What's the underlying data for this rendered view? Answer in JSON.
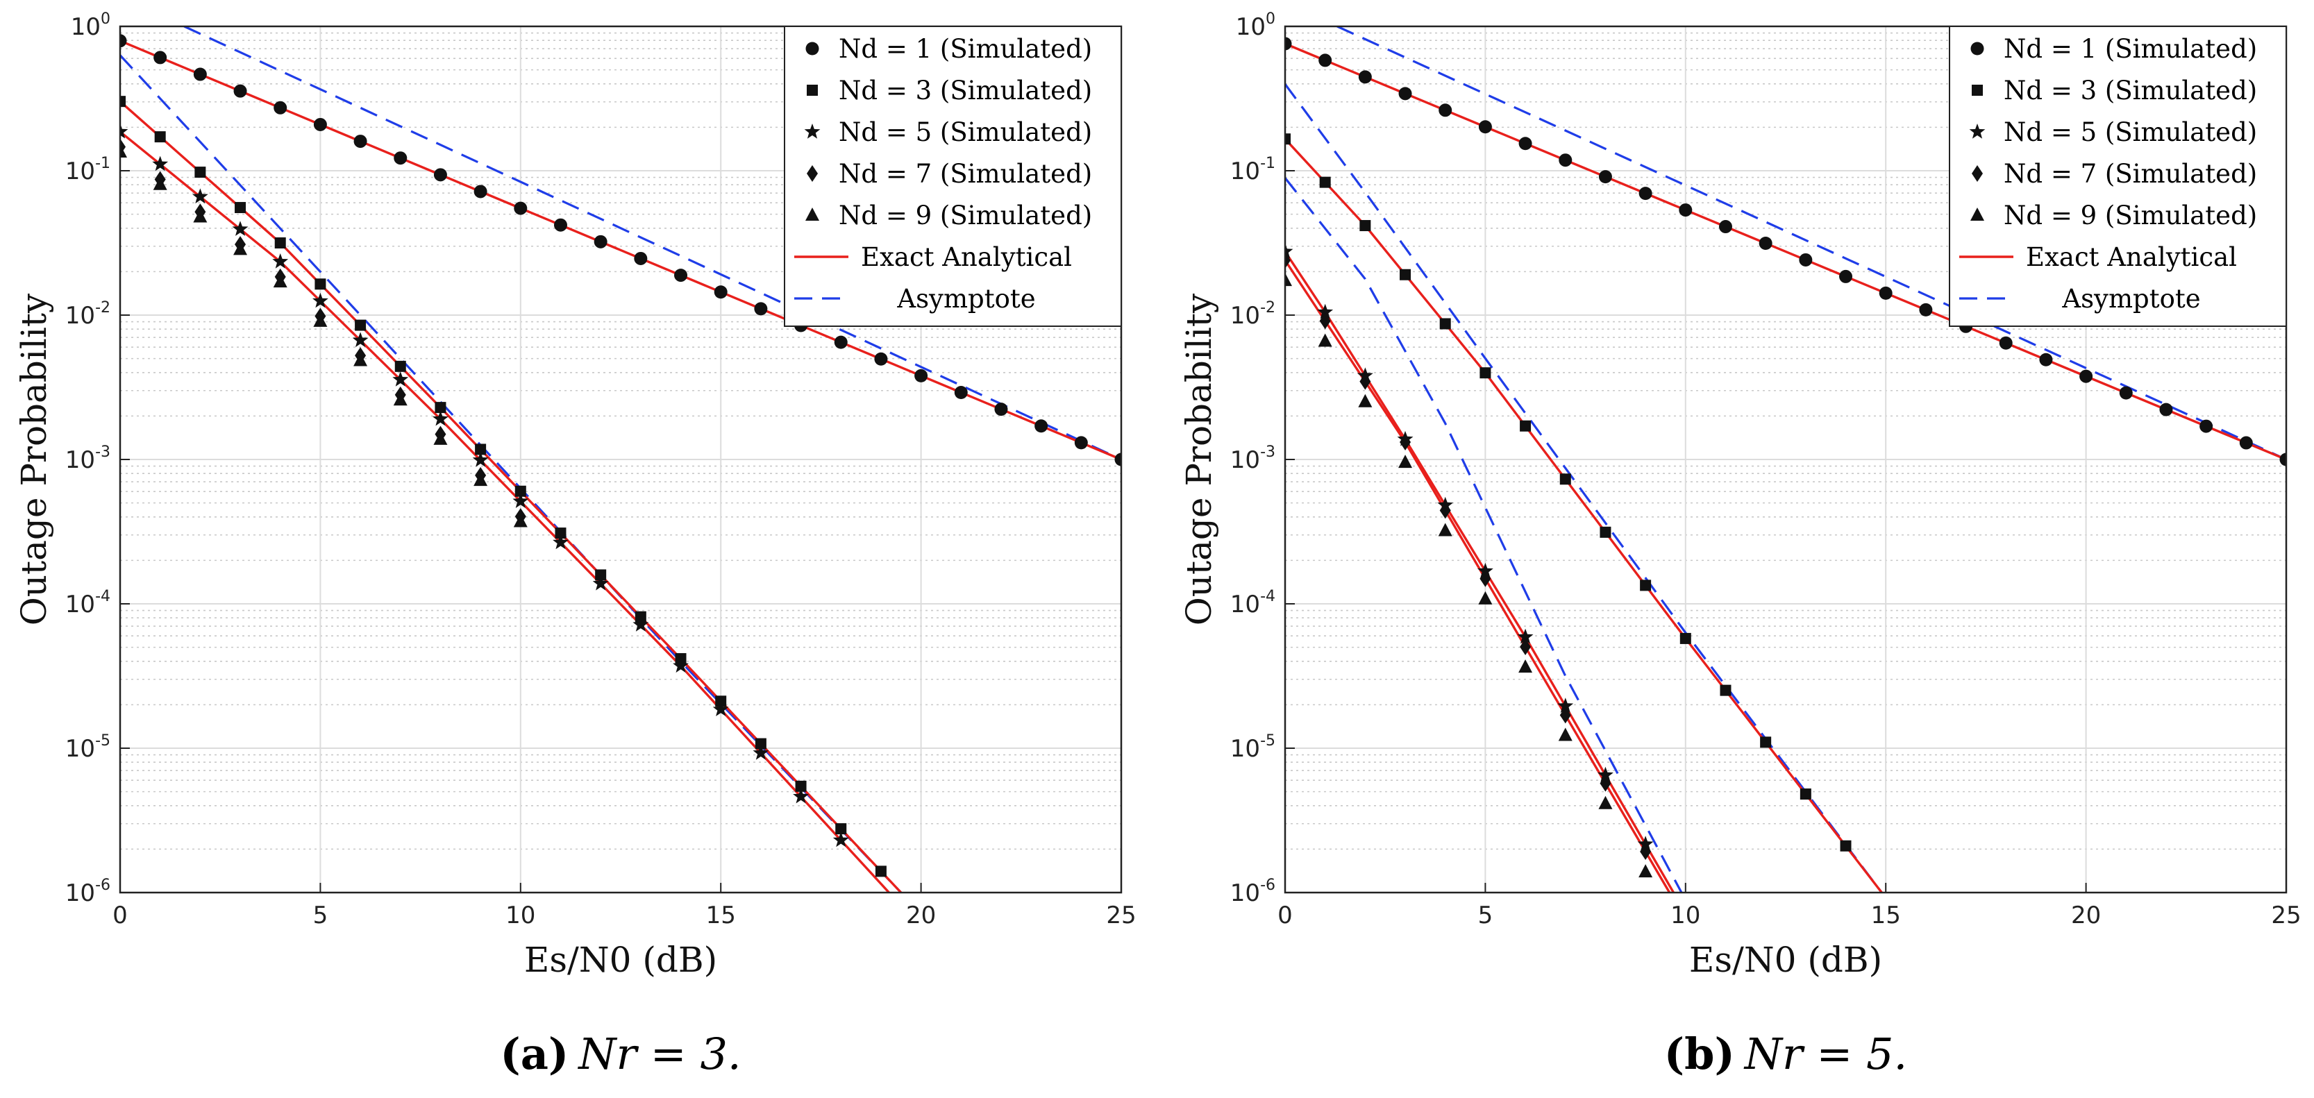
{
  "chart_data": [
    {
      "type": "line",
      "caption_label": "(a)",
      "caption_rest": "Nr = 3.",
      "xlabel": "Es/N0 (dB)",
      "ylabel": "Outage Probability",
      "y_scale": "log",
      "xlim": [
        0,
        25
      ],
      "ylim_exp": [
        -6,
        0
      ],
      "x_ticks": [
        "0",
        "5",
        "10",
        "15",
        "20",
        "25"
      ],
      "y_tick_bases": [
        "10",
        "10",
        "10",
        "10",
        "10",
        "10",
        "10"
      ],
      "y_tick_exps": [
        "-6",
        "-5",
        "-4",
        "-3",
        "-2",
        "-1",
        "0"
      ],
      "grid": true,
      "legend_position": "top-right",
      "legend": [
        {
          "text": "Nd = 1 (Simulated)",
          "marker": "circle"
        },
        {
          "text": "Nd = 3 (Simulated)",
          "marker": "square"
        },
        {
          "text": "Nd = 5 (Simulated)",
          "marker": "star"
        },
        {
          "text": "Nd = 7 (Simulated)",
          "marker": "diamond"
        },
        {
          "text": "Nd = 9 (Simulated)",
          "marker": "triangle"
        },
        {
          "text": "Exact Analytical",
          "marker": "line-red"
        },
        {
          "text": "Asymptote",
          "marker": "line-dash-blue"
        }
      ],
      "series": [
        {
          "name": "Nd = 1",
          "marker": "circle",
          "exact": {
            "x": [
              0,
              25
            ],
            "log10y": [
              -0.1,
              -3.0
            ]
          },
          "asym": {
            "x": [
              1.6,
              25
            ],
            "log10y": [
              0.0,
              -3.0
            ]
          },
          "sim_x": [
            0,
            25
          ]
        },
        {
          "name": "Nd = 3",
          "marker": "square",
          "exact": {
            "x": [
              0,
              4,
              8,
              14,
              19.5
            ],
            "log10y": [
              -0.52,
              -1.5,
              -2.64,
              -4.38,
              -6.0
            ]
          },
          "asym": {
            "x": [
              0,
              5,
              9,
              14,
              19.5
            ],
            "log10y": [
              -0.2,
              -1.7,
              -2.9,
              -4.4,
              -6.0
            ]
          },
          "sim_x": [
            0,
            19
          ]
        },
        {
          "name": "Nd = 5",
          "marker": "star",
          "exact": {
            "x": [
              0,
              4,
              8,
              14,
              19.2
            ],
            "log10y": [
              -0.73,
              -1.63,
              -2.72,
              -4.43,
              -6.0
            ]
          },
          "asym": null,
          "sim_x": [
            0,
            18
          ]
        },
        {
          "name": "Nd = 7",
          "marker": "diamond",
          "exact": null,
          "asym": null,
          "sim_x": [
            0,
            10
          ]
        },
        {
          "name": "Nd = 9",
          "marker": "triangle",
          "exact": null,
          "asym": null,
          "sim_x": [
            0,
            10
          ]
        }
      ]
    },
    {
      "type": "line",
      "caption_label": "(b)",
      "caption_rest": "Nr = 5.",
      "xlabel": "Es/N0 (dB)",
      "ylabel": "Outage Probability",
      "y_scale": "log",
      "xlim": [
        0,
        25
      ],
      "ylim_exp": [
        -6,
        0
      ],
      "x_ticks": [
        "0",
        "5",
        "10",
        "15",
        "20",
        "25"
      ],
      "y_tick_bases": [
        "10",
        "10",
        "10",
        "10",
        "10",
        "10",
        "10"
      ],
      "y_tick_exps": [
        "-6",
        "-5",
        "-4",
        "-3",
        "-2",
        "-1",
        "0"
      ],
      "grid": true,
      "legend_position": "top-right",
      "legend": [
        {
          "text": "Nd = 1 (Simulated)",
          "marker": "circle"
        },
        {
          "text": "Nd = 3 (Simulated)",
          "marker": "square"
        },
        {
          "text": "Nd = 5 (Simulated)",
          "marker": "star"
        },
        {
          "text": "Nd = 7 (Simulated)",
          "marker": "diamond"
        },
        {
          "text": "Nd = 9 (Simulated)",
          "marker": "triangle"
        },
        {
          "text": "Exact Analytical",
          "marker": "line-red"
        },
        {
          "text": "Asymptote",
          "marker": "line-dash-blue"
        }
      ],
      "series": [
        {
          "name": "Nd = 1",
          "marker": "circle",
          "exact": {
            "x": [
              0,
              25
            ],
            "log10y": [
              -0.12,
              -3.0
            ]
          },
          "asym": {
            "x": [
              1.3,
              25
            ],
            "log10y": [
              0.0,
              -3.0
            ]
          },
          "sim_x": [
            0,
            25
          ]
        },
        {
          "name": "Nd = 3",
          "marker": "square",
          "exact": {
            "x": [
              0,
              2,
              5,
              10,
              14.9
            ],
            "log10y": [
              -0.78,
              -1.38,
              -2.4,
              -4.24,
              -6.0
            ]
          },
          "asym": {
            "x": [
              0,
              2,
              5,
              10,
              14.9
            ],
            "log10y": [
              -0.4,
              -1.15,
              -2.3,
              -4.2,
              -6.0
            ]
          },
          "sim_x": [
            0,
            14
          ]
        },
        {
          "name": "Nd = 5",
          "marker": "star",
          "exact": {
            "x": [
              0,
              1,
              3,
              6,
              9.7
            ],
            "log10y": [
              -1.56,
              -1.98,
              -2.86,
              -4.23,
              -6.0
            ]
          },
          "asym": {
            "x": [
              0,
              2,
              4,
              7,
              9.9
            ],
            "log10y": [
              -1.05,
              -1.75,
              -2.75,
              -4.5,
              -6.0
            ]
          },
          "sim_x": [
            0,
            9
          ]
        },
        {
          "name": "Nd = 7",
          "marker": "diamond",
          "exact": {
            "x": [
              0,
              3,
              9.6
            ],
            "log10y": [
              -1.62,
              -2.88,
              -6.0
            ]
          },
          "asym": null,
          "sim_x": [
            0,
            9
          ]
        },
        {
          "name": "Nd = 9",
          "marker": "triangle",
          "exact": null,
          "asym": null,
          "sim_x": [
            0,
            9
          ]
        }
      ]
    }
  ]
}
